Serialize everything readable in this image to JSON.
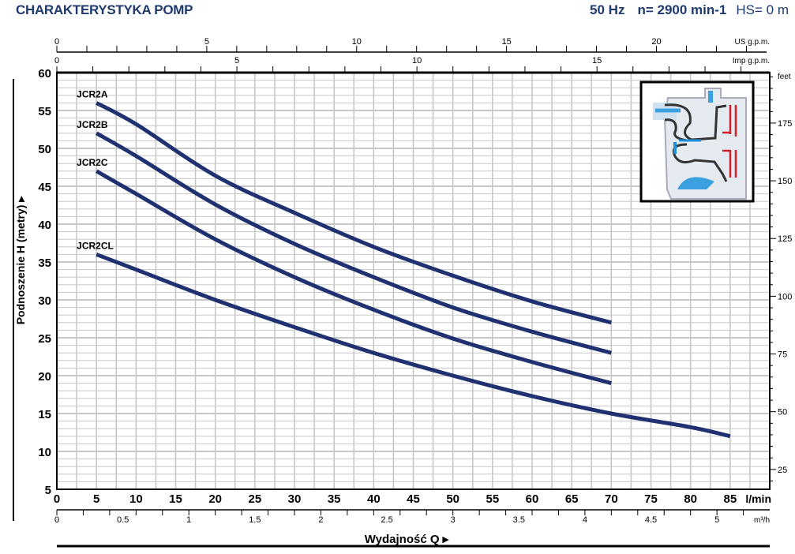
{
  "header": {
    "title": "CHARAKTERYSTYKA POMP",
    "frequency": "50 Hz",
    "speed": "n= 2900 min-1",
    "suction": "HS= 0 m"
  },
  "chart_data": {
    "type": "line",
    "title": "CHARAKTERYSTYKA POMP",
    "xlabel": "Wydajność Q",
    "ylabel": "Podnoszenie H (metry)",
    "x_unit": "l/min",
    "xlim": [
      0,
      90
    ],
    "ylim": [
      5,
      60
    ],
    "grid": true,
    "x_ticks": [
      0,
      5,
      10,
      15,
      20,
      25,
      30,
      35,
      40,
      45,
      50,
      55,
      60,
      65,
      70,
      75,
      80,
      85
    ],
    "y_ticks": [
      5,
      10,
      15,
      20,
      25,
      30,
      35,
      40,
      45,
      50,
      55,
      60
    ],
    "secondary_axes": {
      "us_gpm": {
        "label": "US g.p.m.",
        "ticks": [
          0,
          5,
          10,
          15,
          20
        ]
      },
      "imp_gpm": {
        "label": "Imp g.p.m.",
        "ticks": [
          0,
          5,
          10,
          15
        ]
      },
      "m3h": {
        "label": "m³/h",
        "ticks": [
          "0",
          "0.5",
          "1",
          "1.5",
          "2",
          "2.5",
          "3",
          "3.5",
          "4",
          "4.5",
          "5"
        ]
      },
      "feet": {
        "label": "feet",
        "ticks": [
          25,
          50,
          75,
          100,
          125,
          150,
          175
        ]
      }
    },
    "series": [
      {
        "name": "JCR2A",
        "x": [
          5,
          10,
          20,
          30,
          40,
          50,
          60,
          70
        ],
        "y": [
          56,
          53.2,
          46.4,
          41.5,
          37,
          33.2,
          29.8,
          27
        ]
      },
      {
        "name": "JCR2B",
        "x": [
          5,
          10,
          20,
          30,
          40,
          50,
          60,
          70
        ],
        "y": [
          52,
          49,
          42.6,
          37.4,
          33,
          29,
          25.8,
          23
        ]
      },
      {
        "name": "JCR2C",
        "x": [
          5,
          10,
          20,
          30,
          40,
          50,
          60,
          70
        ],
        "y": [
          47,
          44,
          38,
          33,
          28.7,
          24.9,
          21.8,
          19
        ]
      },
      {
        "name": "JCR2CL",
        "x": [
          5,
          10,
          20,
          30,
          40,
          50,
          60,
          70,
          80,
          85
        ],
        "y": [
          36,
          34,
          30,
          26.4,
          23,
          20,
          17.3,
          15,
          13.2,
          12
        ]
      }
    ],
    "line_color": "#1f3170"
  }
}
